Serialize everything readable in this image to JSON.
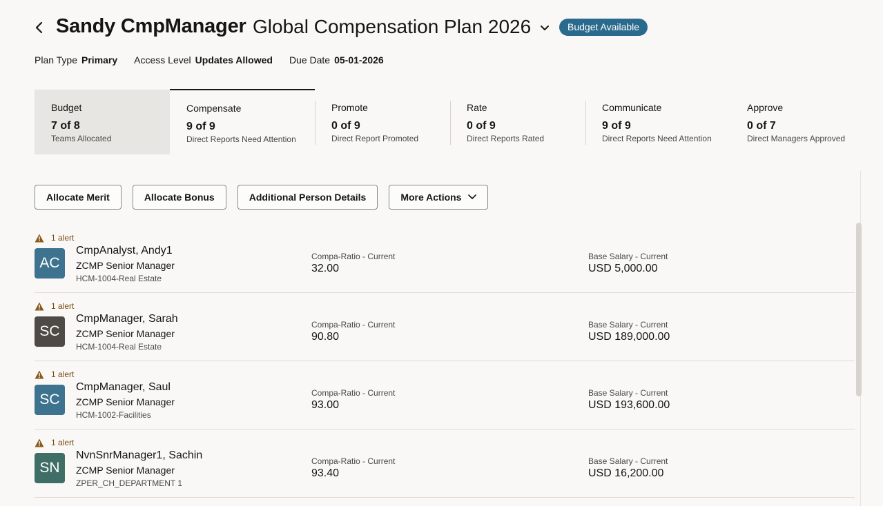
{
  "header": {
    "person_name": "Sandy CmpManager",
    "plan_name": "Global Compensation Plan 2026",
    "budget_badge": "Budget Available"
  },
  "meta": [
    {
      "label": "Plan Type",
      "value": "Primary"
    },
    {
      "label": "Access Level",
      "value": "Updates Allowed"
    },
    {
      "label": "Due Date",
      "value": "05-01-2026"
    }
  ],
  "tabs": [
    {
      "label": "Budget",
      "value": "7 of 8",
      "sub": "Teams Allocated"
    },
    {
      "label": "Compensate",
      "value": "9 of 9",
      "sub": "Direct Reports Need Attention"
    },
    {
      "label": "Promote",
      "value": "0 of 9",
      "sub": "Direct Report Promoted"
    },
    {
      "label": "Rate",
      "value": "0 of 9",
      "sub": "Direct Reports Rated"
    },
    {
      "label": "Communicate",
      "value": "9 of 9",
      "sub": "Direct Reports Need Attention"
    },
    {
      "label": "Approve",
      "value": "0 of 7",
      "sub": "Direct Managers Approved"
    }
  ],
  "toolbar": {
    "allocate_merit": "Allocate Merit",
    "allocate_bonus": "Allocate Bonus",
    "additional_details": "Additional Person Details",
    "more_actions": "More Actions"
  },
  "column_labels": {
    "compa_ratio": "Compa-Ratio - Current",
    "base_salary": "Base Salary - Current"
  },
  "rows": [
    {
      "alert": "1 alert",
      "initials": "AC",
      "avatar_color": "#3e7390",
      "name": "CmpAnalyst, Andy1",
      "title": "ZCMP Senior Manager",
      "dept": "HCM-1004-Real Estate",
      "compa_ratio": "32.00",
      "base_salary": "USD 5,000.00"
    },
    {
      "alert": "1 alert",
      "initials": "SC",
      "avatar_color": "#4f4a45",
      "name": "CmpManager, Sarah",
      "title": "ZCMP Senior Manager",
      "dept": "HCM-1004-Real Estate",
      "compa_ratio": "90.80",
      "base_salary": "USD 189,000.00"
    },
    {
      "alert": "1 alert",
      "initials": "SC",
      "avatar_color": "#3e7390",
      "name": "CmpManager, Saul",
      "title": "ZCMP Senior Manager",
      "dept": "HCM-1002-Facilities",
      "compa_ratio": "93.00",
      "base_salary": "USD 193,600.00"
    },
    {
      "alert": "1 alert",
      "initials": "SN",
      "avatar_color": "#3f6e66",
      "name": "NvnSnrManager1, Sachin",
      "title": "ZCMP Senior Manager",
      "dept": "ZPER_CH_DEPARTMENT 1",
      "compa_ratio": "93.40",
      "base_salary": "USD 16,200.00"
    }
  ]
}
